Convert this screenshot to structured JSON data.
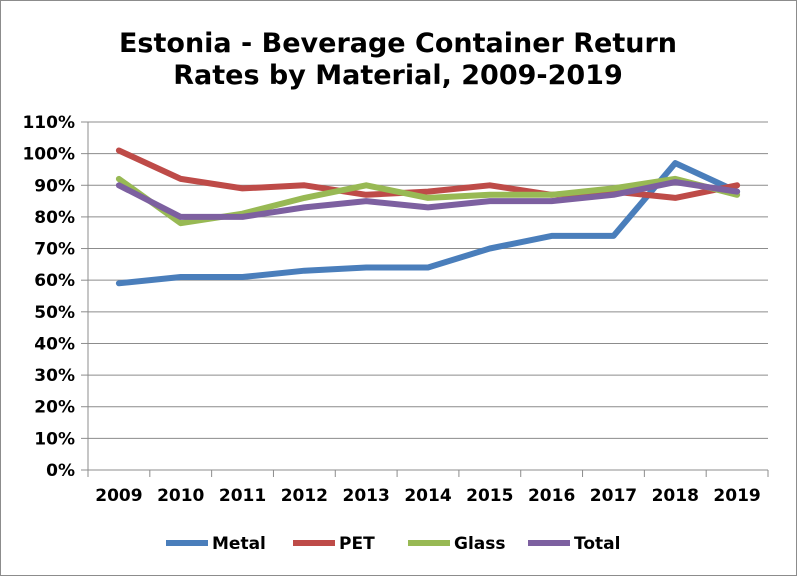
{
  "chart_data": {
    "type": "line",
    "title_lines": [
      "Estonia - Beverage Container Return",
      "Rates by Material, 2009-2019"
    ],
    "xlabel": "",
    "ylabel": "",
    "categories": [
      "2009",
      "2010",
      "2011",
      "2012",
      "2013",
      "2014",
      "2015",
      "2016",
      "2017",
      "2018",
      "2019"
    ],
    "ylim": [
      0,
      110
    ],
    "y_ticks": [
      "0%",
      "10%",
      "20%",
      "30%",
      "40%",
      "50%",
      "60%",
      "70%",
      "80%",
      "90%",
      "100%",
      "110%"
    ],
    "grid": true,
    "legend_position": "bottom",
    "series": [
      {
        "name": "Metal",
        "color": "#4a7ebb",
        "values": [
          59,
          61,
          61,
          63,
          64,
          64,
          70,
          74,
          74,
          97,
          88
        ]
      },
      {
        "name": "PET",
        "color": "#be4b48",
        "values": [
          101,
          92,
          89,
          90,
          87,
          88,
          90,
          87,
          88,
          86,
          90
        ]
      },
      {
        "name": "Glass",
        "color": "#98b954",
        "values": [
          92,
          78,
          81,
          86,
          90,
          86,
          87,
          87,
          89,
          92,
          87
        ]
      },
      {
        "name": "Total",
        "color": "#7d60a0",
        "values": [
          90,
          80,
          80,
          83,
          85,
          83,
          85,
          85,
          87,
          91,
          88
        ]
      }
    ]
  }
}
